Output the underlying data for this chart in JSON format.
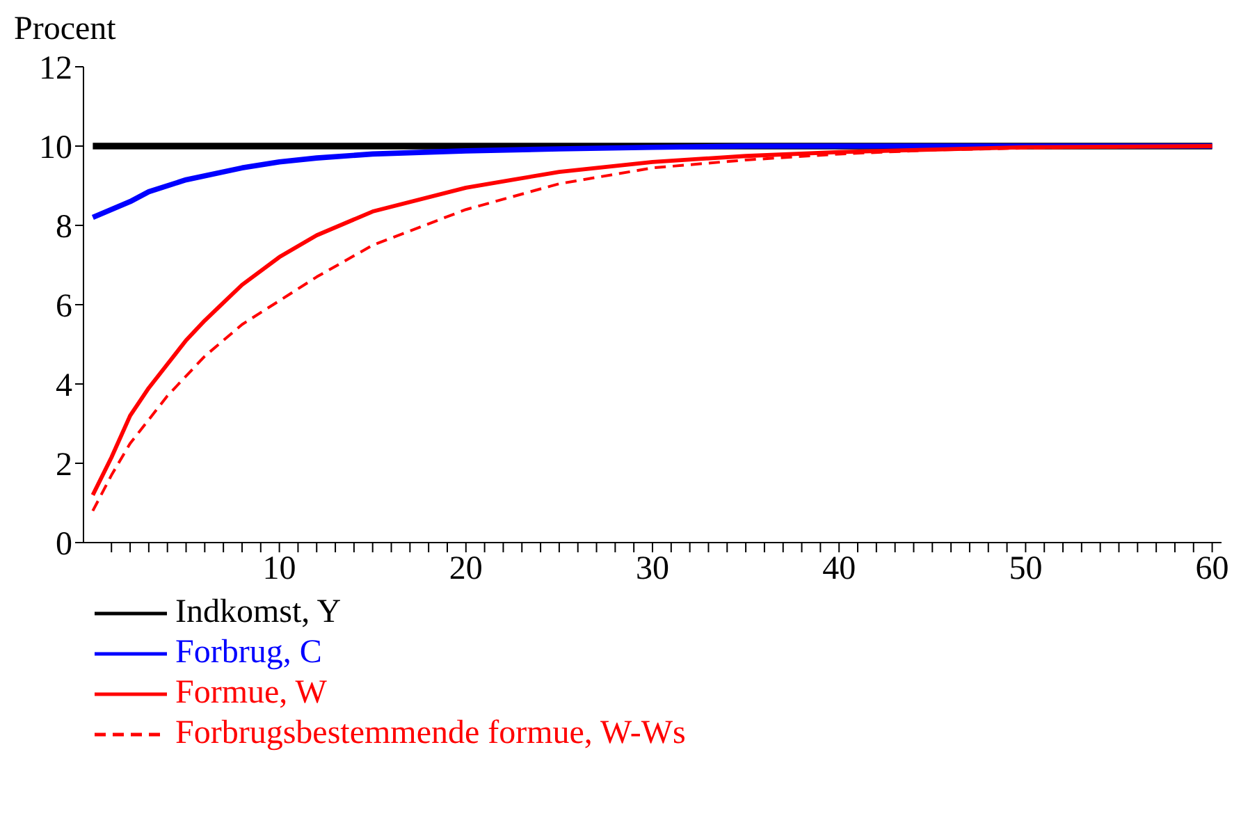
{
  "chart_data": {
    "type": "line",
    "ylabel": "Procent",
    "xlim": [
      -0.5,
      60.5
    ],
    "ylim": [
      0,
      12
    ],
    "yticks": [
      0,
      2,
      4,
      6,
      8,
      10,
      12
    ],
    "xticks": [
      {
        "value": 1,
        "label": null
      },
      {
        "value": 2,
        "label": null
      },
      {
        "value": 3,
        "label": null
      },
      {
        "value": 4,
        "label": null
      },
      {
        "value": 5,
        "label": null
      },
      {
        "value": 6,
        "label": null
      },
      {
        "value": 7,
        "label": null
      },
      {
        "value": 8,
        "label": null
      },
      {
        "value": 9,
        "label": null
      },
      10,
      {
        "value": 11,
        "label": null
      },
      {
        "value": 12,
        "label": null
      },
      {
        "value": 13,
        "label": null
      },
      {
        "value": 14,
        "label": null
      },
      {
        "value": 15,
        "label": null
      },
      {
        "value": 16,
        "label": null
      },
      {
        "value": 17,
        "label": null
      },
      {
        "value": 18,
        "label": null
      },
      {
        "value": 19,
        "label": null
      },
      20,
      {
        "value": 21,
        "label": null
      },
      {
        "value": 22,
        "label": null
      },
      {
        "value": 23,
        "label": null
      },
      {
        "value": 24,
        "label": null
      },
      {
        "value": 25,
        "label": null
      },
      {
        "value": 26,
        "label": null
      },
      {
        "value": 27,
        "label": null
      },
      {
        "value": 28,
        "label": null
      },
      {
        "value": 29,
        "label": null
      },
      30,
      {
        "value": 31,
        "label": null
      },
      {
        "value": 32,
        "label": null
      },
      {
        "value": 33,
        "label": null
      },
      {
        "value": 34,
        "label": null
      },
      {
        "value": 35,
        "label": null
      },
      {
        "value": 36,
        "label": null
      },
      {
        "value": 37,
        "label": null
      },
      {
        "value": 38,
        "label": null
      },
      {
        "value": 39,
        "label": null
      },
      40,
      {
        "value": 41,
        "label": null
      },
      {
        "value": 42,
        "label": null
      },
      {
        "value": 43,
        "label": null
      },
      {
        "value": 44,
        "label": null
      },
      {
        "value": 45,
        "label": null
      },
      {
        "value": 46,
        "label": null
      },
      {
        "value": 47,
        "label": null
      },
      {
        "value": 48,
        "label": null
      },
      {
        "value": 49,
        "label": null
      },
      50,
      {
        "value": 51,
        "label": null
      },
      {
        "value": 52,
        "label": null
      },
      {
        "value": 53,
        "label": null
      },
      {
        "value": 54,
        "label": null
      },
      {
        "value": 55,
        "label": null
      },
      {
        "value": 56,
        "label": null
      },
      {
        "value": 57,
        "label": null
      },
      {
        "value": 58,
        "label": null
      },
      {
        "value": 59,
        "label": null
      },
      60
    ],
    "grid": false,
    "legend": "bottom",
    "marker": "none",
    "series": [
      {
        "name": "Indkomst, Y",
        "color": "#000000",
        "line_style": "solid",
        "x": [
          0,
          60
        ],
        "values": [
          10,
          10
        ]
      },
      {
        "name": "Forbrug, C",
        "color": "#0000ff",
        "line_style": "solid",
        "x": [
          0,
          2,
          3,
          5,
          8,
          10,
          12,
          15,
          20,
          25,
          30,
          35,
          60
        ],
        "values": [
          8.2,
          8.6,
          8.85,
          9.15,
          9.45,
          9.6,
          9.7,
          9.8,
          9.88,
          9.93,
          9.97,
          10,
          10
        ]
      },
      {
        "name": "Formue, W",
        "color": "#ff0000",
        "line_style": "solid",
        "x": [
          0,
          1,
          2,
          3,
          4,
          5,
          6,
          7,
          8,
          10,
          12,
          15,
          20,
          25,
          30,
          35,
          40,
          50,
          60
        ],
        "values": [
          1.2,
          2.15,
          3.2,
          3.9,
          4.5,
          5.1,
          5.6,
          6.05,
          6.5,
          7.2,
          7.75,
          8.35,
          8.95,
          9.35,
          9.6,
          9.75,
          9.85,
          9.97,
          10
        ]
      },
      {
        "name": "Forbrugsbestemmende formue, W-Ws",
        "color": "#ff0000",
        "line_style": "dashed",
        "x": [
          0,
          1,
          2,
          3,
          4,
          5,
          6,
          7,
          8,
          10,
          12,
          15,
          20,
          25,
          30,
          35,
          40,
          45,
          50,
          60
        ],
        "values": [
          0.8,
          1.7,
          2.5,
          3.1,
          3.7,
          4.2,
          4.7,
          5.1,
          5.5,
          6.1,
          6.7,
          7.5,
          8.4,
          9.05,
          9.45,
          9.65,
          9.8,
          9.9,
          9.95,
          10
        ]
      }
    ]
  }
}
